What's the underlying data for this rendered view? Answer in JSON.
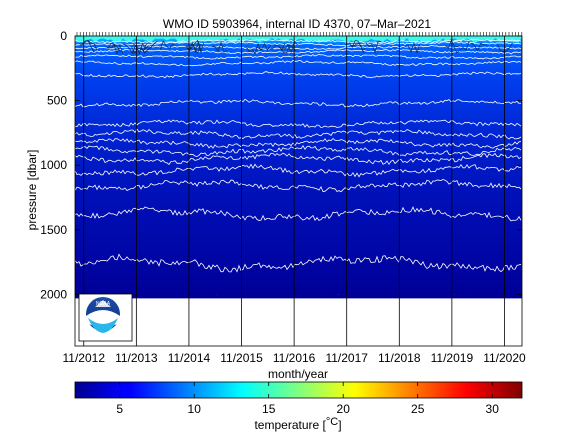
{
  "chart_data": {
    "type": "heatmap",
    "title": "WMO ID 5903964, internal ID 4370, 07–Mar–2021",
    "xlabel": "month/year",
    "ylabel": "pressure [dbar]",
    "colorbar_label_prefix": "temperature [",
    "colorbar_label_unit": "°C",
    "colorbar_label_suffix": "]",
    "x_ticks": [
      "11/2012",
      "11/2013",
      "11/2014",
      "11/2015",
      "11/2016",
      "11/2017",
      "11/2018",
      "11/2019",
      "11/2020"
    ],
    "x_range": [
      "2012-09",
      "2021-03"
    ],
    "y_ticks": [
      0,
      500,
      1000,
      1500,
      2000
    ],
    "y_range": [
      0,
      2400
    ],
    "y_reversed": true,
    "colorbar_ticks": [
      5,
      10,
      15,
      20,
      25,
      30
    ],
    "colorbar_range": [
      2,
      32
    ],
    "colormap": "jet",
    "profile_max_pressure": 2000,
    "isotherm_depths": [
      40,
      60,
      90,
      120,
      160,
      210,
      300,
      520,
      680,
      760,
      830,
      890,
      950,
      1040,
      1160,
      1380,
      1760
    ],
    "surface_temperature_range": [
      10,
      14
    ],
    "deep_temperature_range": [
      2,
      4
    ],
    "logo": "NOAA"
  }
}
